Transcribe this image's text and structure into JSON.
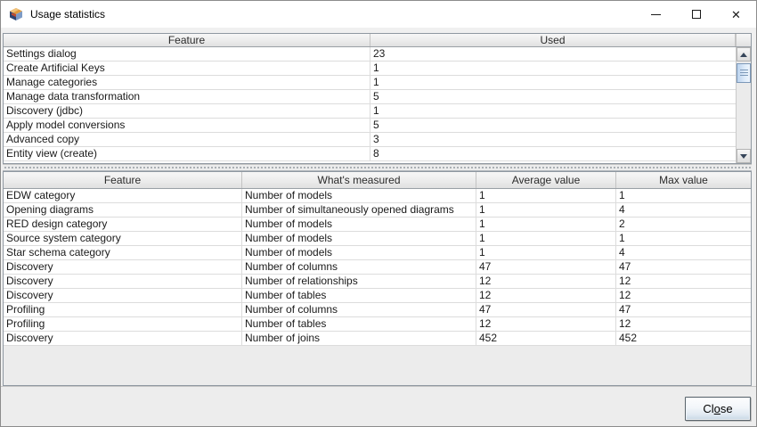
{
  "window": {
    "title": "Usage statistics"
  },
  "icons": {
    "app": "app-cube-logo",
    "minimize": "minimize-line",
    "maximize": "maximize-square",
    "close_window_glyph": "✕",
    "scroll_up": "up-triangle",
    "scroll_down": "down-triangle"
  },
  "top_table": {
    "columns": [
      "Feature",
      "Used"
    ],
    "rows": [
      [
        "Settings dialog",
        "23"
      ],
      [
        "Create Artificial Keys",
        "1"
      ],
      [
        "Manage categories",
        "1"
      ],
      [
        "Manage data transformation",
        "5"
      ],
      [
        "Discovery (jdbc)",
        "1"
      ],
      [
        "Apply model conversions",
        "5"
      ],
      [
        "Advanced copy",
        "3"
      ],
      [
        "Entity view (create)",
        "8"
      ]
    ]
  },
  "bottom_table": {
    "columns": [
      "Feature",
      "What's measured",
      "Average value",
      "Max value"
    ],
    "rows": [
      [
        "EDW category",
        "Number of models",
        "1",
        "1"
      ],
      [
        "Opening diagrams",
        "Number of simultaneously opened diagrams",
        "1",
        "4"
      ],
      [
        "RED design category",
        "Number of models",
        "1",
        "2"
      ],
      [
        "Source system category",
        "Number of models",
        "1",
        "1"
      ],
      [
        "Star schema category",
        "Number of models",
        "1",
        "4"
      ],
      [
        "Discovery",
        "Number of columns",
        "47",
        "47"
      ],
      [
        "Discovery",
        "Number of relationships",
        "12",
        "12"
      ],
      [
        "Discovery",
        "Number of tables",
        "12",
        "12"
      ],
      [
        "Profiling",
        "Number of columns",
        "47",
        "47"
      ],
      [
        "Profiling",
        "Number of tables",
        "12",
        "12"
      ],
      [
        "Discovery",
        "Number of joins",
        "452",
        "452"
      ]
    ]
  },
  "footer": {
    "close_label": "Close",
    "close_pre": "Cl",
    "close_mnemonic": "o",
    "close_post": "se"
  },
  "colors": {
    "titlebar_bg": "#ffffff",
    "dialog_bg": "#f0f0f0",
    "pane_border": "#8f98a1",
    "grid_line": "#dcdcdc",
    "scrollbar_thumb": "#bcd3ee",
    "scrollbar_thumb_border": "#7c98b8",
    "button_gradient_bottom": "#c7d6e5"
  }
}
